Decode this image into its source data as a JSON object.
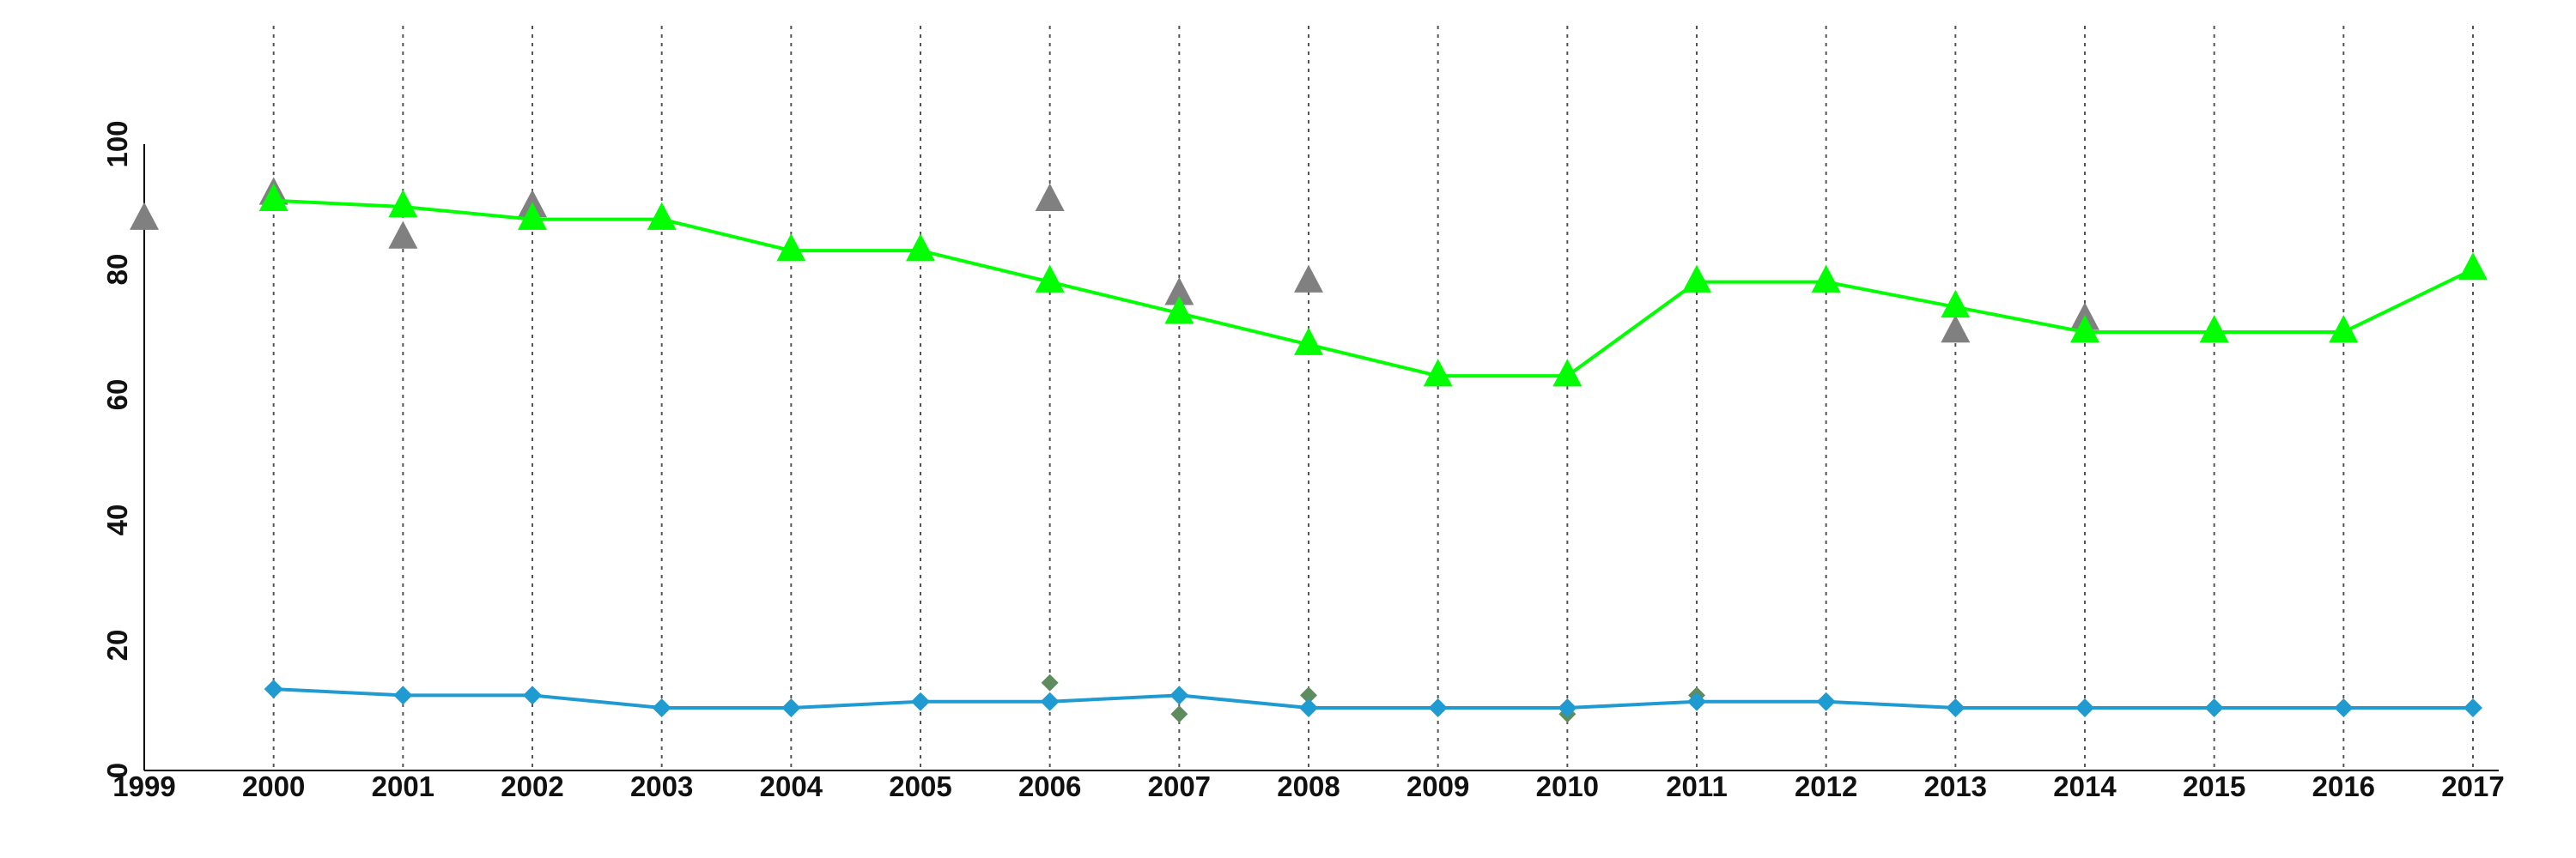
{
  "chart_data": {
    "type": "line",
    "x": [
      1999,
      2000,
      2001,
      2002,
      2003,
      2004,
      2005,
      2006,
      2007,
      2008,
      2009,
      2010,
      2011,
      2012,
      2013,
      2014,
      2015,
      2016,
      2017
    ],
    "x_tick_labels": [
      "1999",
      "2000",
      "2001",
      "2002",
      "2003",
      "2004",
      "2005",
      "2006",
      "2007",
      "2008",
      "2009",
      "2010",
      "2011",
      "2012",
      "2013",
      "2014",
      "2015",
      "2016",
      "2017"
    ],
    "y_tick_labels": [
      "0",
      "20",
      "40",
      "60",
      "80",
      "100"
    ],
    "xlim": [
      1999,
      2017
    ],
    "ylim": [
      0,
      100
    ],
    "title": "",
    "xlabel": "",
    "ylabel": "",
    "grid": "vertical dotted lines at each year",
    "legend": "none",
    "series": [
      {
        "kind": "line",
        "marker": "triangle",
        "color": "#00ff00",
        "points": [
          [
            2000,
            91
          ],
          [
            2001,
            90
          ],
          [
            2002,
            88
          ],
          [
            2003,
            88
          ],
          [
            2004,
            83
          ],
          [
            2005,
            83
          ],
          [
            2006,
            78
          ],
          [
            2007,
            73
          ],
          [
            2008,
            68
          ],
          [
            2009,
            63
          ],
          [
            2010,
            63
          ],
          [
            2011,
            78
          ],
          [
            2012,
            78
          ],
          [
            2013,
            74
          ],
          [
            2014,
            70
          ],
          [
            2015,
            70
          ],
          [
            2016,
            70
          ],
          [
            2017,
            80
          ]
        ]
      },
      {
        "kind": "scatter",
        "marker": "triangle",
        "color": "#808080",
        "points": [
          [
            1999,
            88
          ],
          [
            2000,
            92
          ],
          [
            2001,
            85
          ],
          [
            2002,
            90
          ],
          [
            2006,
            91
          ],
          [
            2007,
            76
          ],
          [
            2008,
            78
          ],
          [
            2013,
            70
          ],
          [
            2014,
            72
          ]
        ]
      },
      {
        "kind": "line",
        "marker": "diamond",
        "color": "#1f9bd1",
        "points": [
          [
            2000,
            13
          ],
          [
            2001,
            12
          ],
          [
            2002,
            12
          ],
          [
            2003,
            10
          ],
          [
            2004,
            10
          ],
          [
            2005,
            11
          ],
          [
            2006,
            11
          ],
          [
            2007,
            12
          ],
          [
            2008,
            10
          ],
          [
            2009,
            10
          ],
          [
            2010,
            10
          ],
          [
            2011,
            11
          ],
          [
            2012,
            11
          ],
          [
            2013,
            10
          ],
          [
            2014,
            10
          ],
          [
            2015,
            10
          ],
          [
            2016,
            10
          ],
          [
            2017,
            10
          ]
        ]
      },
      {
        "kind": "scatter",
        "marker": "diamond",
        "color": "#5f8c5f",
        "points": [
          [
            2006,
            14
          ],
          [
            2007,
            9
          ],
          [
            2008,
            12
          ],
          [
            2010,
            9
          ],
          [
            2011,
            12
          ]
        ]
      }
    ]
  }
}
